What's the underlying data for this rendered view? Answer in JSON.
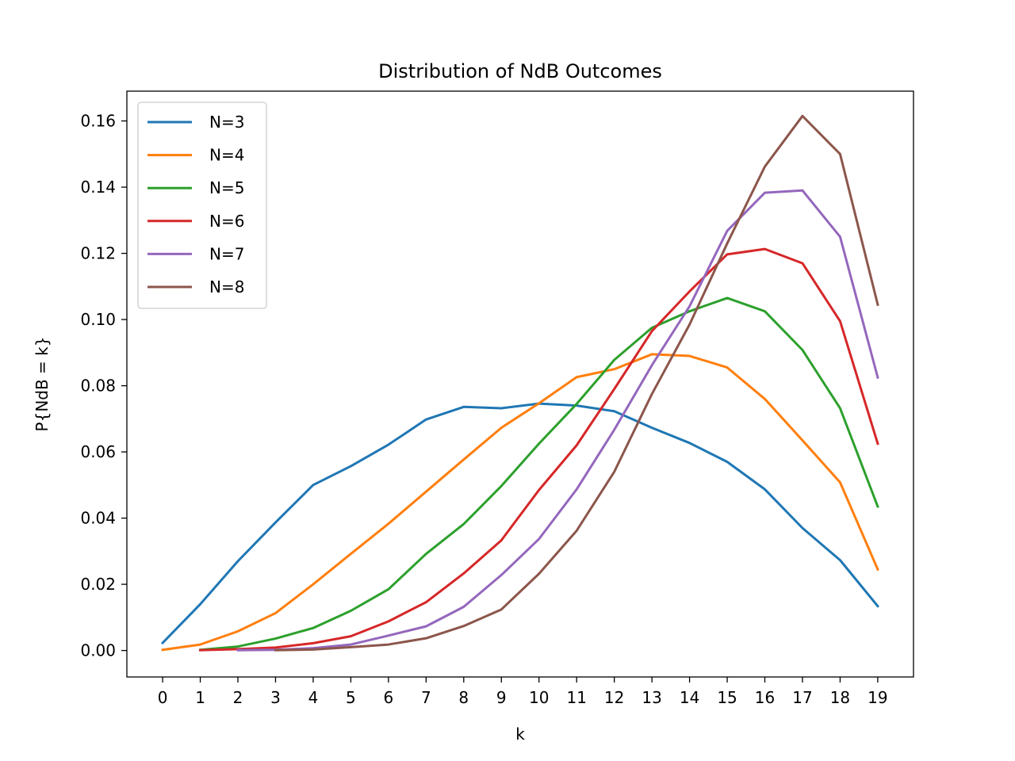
{
  "chart_data": {
    "type": "line",
    "title": "Distribution of NdB Outcomes",
    "xlabel": "k",
    "ylabel": "P{NdB = k}",
    "xlim": [
      -0.95,
      19.95
    ],
    "ylim": [
      -0.008,
      0.169
    ],
    "xticks": [
      "0",
      "1",
      "2",
      "3",
      "4",
      "5",
      "6",
      "7",
      "8",
      "9",
      "10",
      "11",
      "12",
      "13",
      "14",
      "15",
      "16",
      "17",
      "18",
      "19"
    ],
    "yticks": [
      "0.00",
      "0.02",
      "0.04",
      "0.06",
      "0.08",
      "0.10",
      "0.12",
      "0.14",
      "0.16"
    ],
    "grid": false,
    "legend_position": "upper-left",
    "series": [
      {
        "name": "N=3",
        "color": "#1f77b4",
        "x": [
          0,
          1,
          2,
          3,
          4,
          5,
          6,
          7,
          8,
          9,
          10,
          11,
          12,
          13,
          14,
          15,
          16,
          17,
          18,
          19
        ],
        "values": [
          0.0023,
          0.014,
          0.027,
          0.0387,
          0.05,
          0.0557,
          0.0622,
          0.0698,
          0.0736,
          0.0732,
          0.0746,
          0.074,
          0.0723,
          0.0673,
          0.0627,
          0.057,
          0.0487,
          0.037,
          0.0273,
          0.0134
        ]
      },
      {
        "name": "N=4",
        "color": "#ff7f0e",
        "x": [
          0,
          1,
          2,
          3,
          4,
          5,
          6,
          7,
          8,
          9,
          10,
          11,
          12,
          13,
          14,
          15,
          16,
          17,
          18,
          19
        ],
        "values": [
          0.0002,
          0.0018,
          0.0058,
          0.0113,
          0.02,
          0.0292,
          0.0383,
          0.048,
          0.0577,
          0.0673,
          0.0747,
          0.0826,
          0.085,
          0.0895,
          0.089,
          0.0855,
          0.076,
          0.0635,
          0.0508,
          0.0245
        ]
      },
      {
        "name": "N=5",
        "color": "#2ca02c",
        "x": [
          1,
          2,
          3,
          4,
          5,
          6,
          7,
          8,
          9,
          10,
          11,
          12,
          13,
          14,
          15,
          16,
          17,
          18,
          19
        ],
        "values": [
          0.0002,
          0.0012,
          0.0036,
          0.0068,
          0.012,
          0.0185,
          0.0292,
          0.0382,
          0.0497,
          0.0625,
          0.0745,
          0.0878,
          0.0975,
          0.1025,
          0.1065,
          0.1025,
          0.0908,
          0.0732,
          0.0435
        ]
      },
      {
        "name": "N=6",
        "color": "#d62728",
        "x": [
          1,
          2,
          3,
          4,
          5,
          6,
          7,
          8,
          9,
          10,
          11,
          12,
          13,
          14,
          15,
          16,
          17,
          18,
          19
        ],
        "values": [
          0.0001,
          0.0004,
          0.0009,
          0.0022,
          0.0043,
          0.0088,
          0.0146,
          0.0233,
          0.0333,
          0.0485,
          0.062,
          0.079,
          0.0965,
          0.1085,
          0.1197,
          0.1213,
          0.117,
          0.0995,
          0.0625
        ]
      },
      {
        "name": "N=7",
        "color": "#9467bd",
        "x": [
          2,
          3,
          4,
          5,
          6,
          7,
          8,
          9,
          10,
          11,
          12,
          13,
          14,
          15,
          16,
          17,
          18,
          19
        ],
        "values": [
          0.0001,
          0.0002,
          0.0007,
          0.0018,
          0.0045,
          0.0073,
          0.0132,
          0.0228,
          0.0337,
          0.0487,
          0.0667,
          0.0862,
          0.104,
          0.1268,
          0.1383,
          0.139,
          0.125,
          0.0825
        ]
      },
      {
        "name": "N=8",
        "color": "#8c564b",
        "x": [
          3,
          4,
          5,
          6,
          7,
          8,
          9,
          10,
          11,
          12,
          13,
          14,
          15,
          16,
          17,
          18,
          19
        ],
        "values": [
          0.0001,
          0.0003,
          0.001,
          0.0018,
          0.0037,
          0.0074,
          0.0124,
          0.0232,
          0.0362,
          0.054,
          0.0775,
          0.0985,
          0.123,
          0.1462,
          0.1615,
          0.15,
          0.1045
        ]
      }
    ]
  }
}
